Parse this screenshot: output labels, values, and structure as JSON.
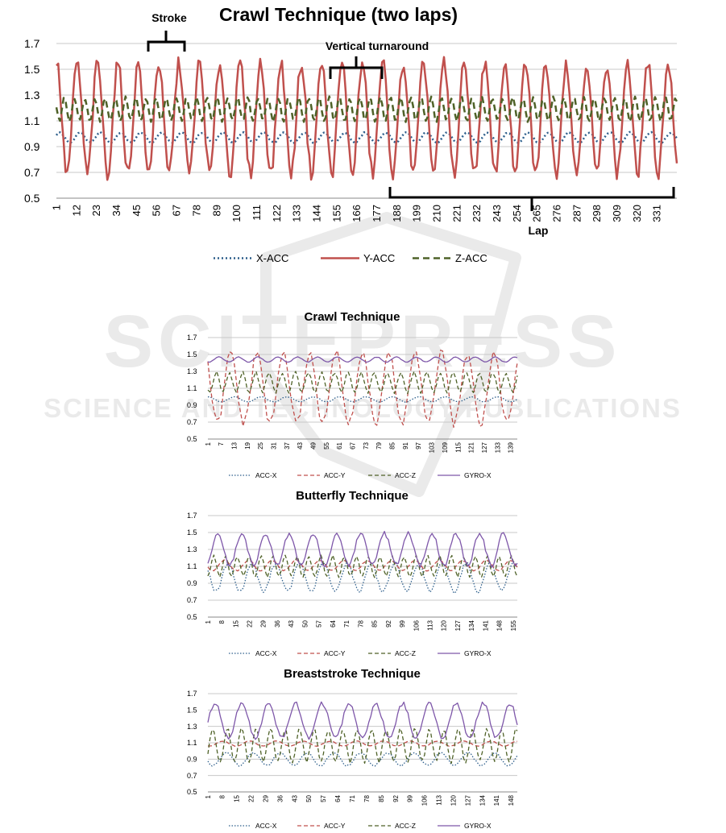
{
  "colors": {
    "x_acc": "#2e5f8c",
    "y_acc": "#c0504d",
    "z_acc": "#4f6228",
    "gyro_x": "#7e57a9",
    "grid": "#c8c8c8",
    "axis_text": "#000000",
    "watermark": "#d9d9d9"
  },
  "watermark": {
    "line1": "SCITEPRESS",
    "line2": "SCIENCE AND TECHNOLOGY PUBLICATIONS"
  },
  "chart_data": [
    {
      "type": "line",
      "title": "Crawl Technique (two laps)",
      "ylim": [
        0.5,
        1.7
      ],
      "yticks": [
        0.5,
        0.7,
        0.9,
        1.1,
        1.3,
        1.5,
        1.7
      ],
      "xlim": [
        1,
        342
      ],
      "xticks": [
        "1",
        "12",
        "23",
        "34",
        "45",
        "56",
        "67",
        "78",
        "89",
        "100",
        "111",
        "122",
        "133",
        "144",
        "155",
        "166",
        "177",
        "188",
        "199",
        "210",
        "221",
        "232",
        "243",
        "254",
        "265",
        "276",
        "287",
        "298",
        "309",
        "320",
        "331"
      ],
      "grid": "horizontal",
      "legend": "bottom",
      "annotations": [
        {
          "text": "Stroke",
          "bracket": [
            47,
            67
          ]
        },
        {
          "text": "Vertical turnaround",
          "bracket": [
            148,
            180
          ]
        },
        {
          "text": "Lap",
          "bracket": [
            184,
            342
          ]
        }
      ],
      "series": [
        {
          "name": "X-ACC",
          "style": "dotted",
          "base": 0.97,
          "amp": 0.04,
          "period": 11.2
        },
        {
          "name": "Y-ACC",
          "style": "solid",
          "base": 1.12,
          "amp": 0.43,
          "period": 11.2
        },
        {
          "name": "Z-ACC",
          "style": "dashed",
          "base": 1.19,
          "amp": 0.09,
          "period": 5.6
        }
      ]
    },
    {
      "type": "line",
      "title": "Crawl Technique",
      "ylim": [
        0.5,
        1.7
      ],
      "yticks": [
        0.5,
        0.7,
        0.9,
        1.1,
        1.3,
        1.5,
        1.7
      ],
      "xlim": [
        1,
        142
      ],
      "xticks": [
        "1",
        "7",
        "13",
        "19",
        "25",
        "31",
        "37",
        "43",
        "49",
        "55",
        "61",
        "67",
        "73",
        "79",
        "85",
        "91",
        "97",
        "103",
        "109",
        "115",
        "121",
        "127",
        "133",
        "139"
      ],
      "grid": "horizontal",
      "legend": "bottom",
      "series": [
        {
          "name": "ACC-X",
          "style": "dotted",
          "base": 0.97,
          "amp": 0.03,
          "period": 12
        },
        {
          "name": "ACC-Y",
          "style": "dashed",
          "base": 1.1,
          "amp": 0.42,
          "period": 12
        },
        {
          "name": "ACC-Z",
          "style": "dashed",
          "base": 1.17,
          "amp": 0.12,
          "period": 6
        },
        {
          "name": "GYRO-X",
          "style": "solid",
          "base": 1.44,
          "amp": 0.03,
          "period": 9
        }
      ]
    },
    {
      "type": "line",
      "title": "Butterfly Technique",
      "ylim": [
        0.5,
        1.7
      ],
      "yticks": [
        0.5,
        0.7,
        0.9,
        1.1,
        1.3,
        1.5,
        1.7
      ],
      "xlim": [
        1,
        157
      ],
      "xticks": [
        "1",
        "8",
        "15",
        "22",
        "29",
        "36",
        "43",
        "50",
        "57",
        "64",
        "71",
        "78",
        "85",
        "92",
        "99",
        "106",
        "113",
        "120",
        "127",
        "134",
        "141",
        "148",
        "155"
      ],
      "grid": "horizontal",
      "legend": "bottom",
      "series": [
        {
          "name": "ACC-X",
          "style": "dotted",
          "base": 0.97,
          "amp": 0.17,
          "period": 12
        },
        {
          "name": "ACC-Y",
          "style": "dashed",
          "base": 1.11,
          "amp": 0.06,
          "period": 12
        },
        {
          "name": "ACC-Z",
          "style": "dashed",
          "base": 1.1,
          "amp": 0.12,
          "period": 6
        },
        {
          "name": "GYRO-X",
          "style": "solid",
          "base": 1.3,
          "amp": 0.19,
          "period": 12
        }
      ]
    },
    {
      "type": "line",
      "title": "Breaststroke Technique",
      "ylim": [
        0.5,
        1.7
      ],
      "yticks": [
        0.5,
        0.7,
        0.9,
        1.1,
        1.3,
        1.5,
        1.7
      ],
      "xlim": [
        1,
        151
      ],
      "xticks": [
        "1",
        "8",
        "15",
        "22",
        "29",
        "36",
        "43",
        "50",
        "57",
        "64",
        "71",
        "78",
        "85",
        "92",
        "99",
        "106",
        "113",
        "120",
        "127",
        "134",
        "141",
        "148"
      ],
      "grid": "horizontal",
      "legend": "bottom",
      "series": [
        {
          "name": "ACC-X",
          "style": "dotted",
          "base": 0.9,
          "amp": 0.08,
          "period": 13
        },
        {
          "name": "ACC-Y",
          "style": "dashed",
          "base": 1.09,
          "amp": 0.03,
          "period": 13
        },
        {
          "name": "ACC-Z",
          "style": "dashed",
          "base": 1.07,
          "amp": 0.2,
          "period": 7
        },
        {
          "name": "GYRO-X",
          "style": "solid",
          "base": 1.37,
          "amp": 0.21,
          "period": 13
        }
      ]
    }
  ]
}
